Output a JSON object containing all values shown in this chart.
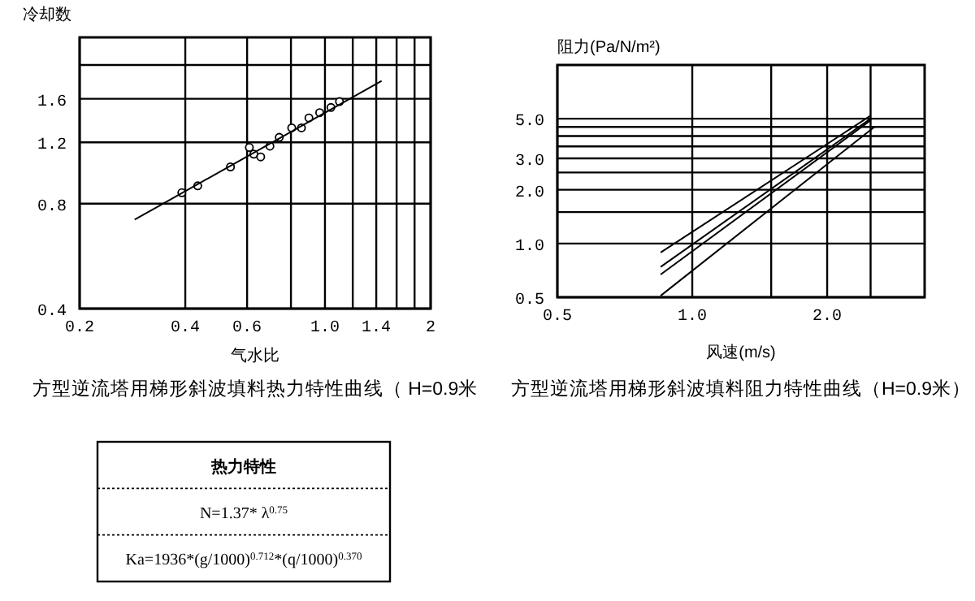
{
  "chart_data": [
    {
      "type": "scatter",
      "title": "方型逆流塔用梯形斜波填料热力特性曲线（ H=0.9米",
      "xlabel": "气水比",
      "ylabel": "冷却数",
      "log": "xy",
      "xlim": [
        0.2,
        2
      ],
      "ylim": [
        0.4,
        2.4
      ],
      "xticks": [
        0.2,
        0.4,
        0.6,
        {
          "value": 0.8,
          "label": null
        },
        {
          "value": 1,
          "label": "1.0"
        },
        {
          "value": 1.2,
          "label": null
        },
        1.4,
        {
          "value": 1.6,
          "label": null
        },
        {
          "value": 1.8,
          "label": null
        },
        2
      ],
      "yticks": [
        0.4,
        0.8,
        1.2,
        1.6,
        {
          "value": 2,
          "label": null
        }
      ],
      "grid": true,
      "series": [
        {
          "type": "scatter",
          "marker": "circle",
          "color": "#000000",
          "x": [
            0.391,
            0.434,
            0.538,
            0.609,
            0.627,
            0.656,
            0.697,
            0.741,
            0.804,
            0.857,
            0.9,
            0.966,
            1.04,
            1.1
          ],
          "values": [
            0.86,
            0.9,
            1.02,
            1.16,
            1.11,
            1.09,
            1.17,
            1.24,
            1.32,
            1.32,
            1.41,
            1.46,
            1.51,
            1.57
          ]
        },
        {
          "type": "line",
          "marker": "none",
          "color": "#000000",
          "x": [
            0.287,
            1.45
          ],
          "values": [
            0.72,
            1.8
          ]
        }
      ]
    },
    {
      "type": "line",
      "title": "方型逆流塔用梯形斜波填料阻力特性曲线（H=0.9米）",
      "xlabel": "风速(m/s)",
      "ylabel": "阻力(Pa/N/m²)",
      "log": "xy",
      "xlim": [
        0.5,
        3.3
      ],
      "ylim": [
        0.5,
        10
      ],
      "xticks": [
        0.5,
        {
          "value": 1,
          "label": "1.0"
        },
        {
          "value": 1.5,
          "label": null
        },
        {
          "value": 2,
          "label": "2.0"
        },
        {
          "value": 2.5,
          "label": null
        }
      ],
      "yticks": [
        0.5,
        {
          "value": 1,
          "label": "1.0"
        },
        {
          "value": 1.5,
          "label": null
        },
        {
          "value": 2,
          "label": "2.0"
        },
        {
          "value": 2.5,
          "label": null
        },
        {
          "value": 3,
          "label": "3.0"
        },
        {
          "value": 3.5,
          "label": null
        },
        {
          "value": 4,
          "label": null
        },
        {
          "value": 4.5,
          "label": null
        },
        {
          "value": 5,
          "label": "5.0"
        }
      ],
      "grid": true,
      "series": [
        {
          "color": "#000000",
          "x": [
            0.85,
            2.5
          ],
          "values": [
            0.89,
            5.2
          ]
        },
        {
          "color": "#000000",
          "x": [
            0.85,
            2.5
          ],
          "values": [
            0.74,
            5.0
          ]
        },
        {
          "color": "#000000",
          "x": [
            0.85,
            2.5
          ],
          "values": [
            0.67,
            4.9
          ]
        },
        {
          "color": "#000000",
          "x": [
            0.85,
            2.55
          ],
          "values": [
            0.51,
            4.5
          ]
        }
      ]
    },
    {
      "type": "other",
      "title": "热力特性",
      "annotations": [
        "N=1.37* λ$^{0.75}$",
        "Ka=1936*(g/1000)$^{0.712}$*(q/1000)$^{0.370}$"
      ]
    }
  ]
}
